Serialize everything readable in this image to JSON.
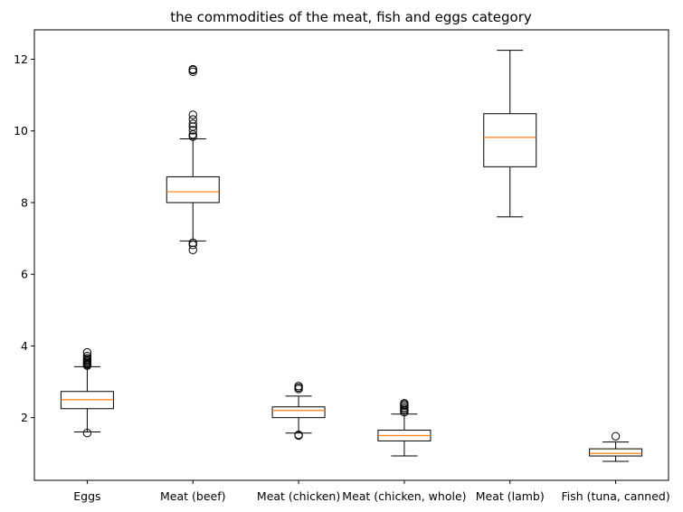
{
  "chart_data": {
    "type": "box",
    "title": "the  commodities of the meat, fish and eggs category",
    "xlabel": "",
    "ylabel": "",
    "categories": [
      "Eggs",
      "Meat (beef)",
      "Meat (chicken)",
      "Meat (chicken, whole)",
      "Meat (lamb)",
      "Fish (tuna, canned)"
    ],
    "ylim": [
      0.25,
      12.82
    ],
    "yticks": [
      2,
      4,
      6,
      8,
      10,
      12
    ],
    "grid": false,
    "box_color": "#000000",
    "median_color": "#ff7f0e",
    "boxes": [
      {
        "name": "Eggs",
        "whisker_low": 1.6,
        "q1": 2.25,
        "median": 2.5,
        "q3": 2.73,
        "whisker_high": 3.42,
        "outliers": [
          1.57,
          3.45,
          3.48,
          3.5,
          3.53,
          3.56,
          3.59,
          3.62,
          3.66,
          3.72,
          3.82
        ]
      },
      {
        "name": "Meat (beef)",
        "whisker_low": 6.93,
        "q1": 8.0,
        "median": 8.3,
        "q3": 8.72,
        "whisker_high": 9.78,
        "outliers": [
          6.68,
          6.82,
          6.88,
          9.84,
          9.9,
          10.02,
          10.12,
          10.2,
          10.32,
          10.45,
          11.65,
          11.7,
          11.72
        ]
      },
      {
        "name": "Meat (chicken)",
        "whisker_low": 1.57,
        "q1": 2.0,
        "median": 2.2,
        "q3": 2.3,
        "whisker_high": 2.6,
        "outliers": [
          1.5,
          1.52,
          2.8,
          2.84,
          2.88
        ]
      },
      {
        "name": "Meat (chicken, whole)",
        "whisker_low": 0.93,
        "q1": 1.35,
        "median": 1.5,
        "q3": 1.65,
        "whisker_high": 2.1,
        "outliers": [
          2.15,
          2.2,
          2.24,
          2.28,
          2.33,
          2.37,
          2.4
        ]
      },
      {
        "name": "Meat (lamb)",
        "whisker_low": 7.6,
        "q1": 9.0,
        "median": 9.82,
        "q3": 10.48,
        "whisker_high": 12.25,
        "outliers": []
      },
      {
        "name": "Fish (tuna, canned)",
        "whisker_low": 0.78,
        "q1": 0.93,
        "median": 1.0,
        "q3": 1.13,
        "whisker_high": 1.32,
        "outliers": [
          1.48
        ]
      }
    ]
  }
}
